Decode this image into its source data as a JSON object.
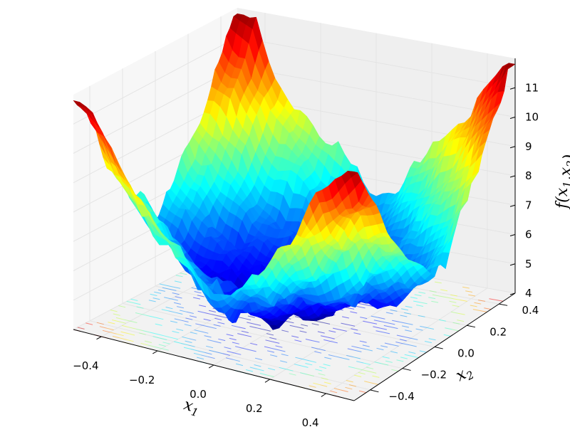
{
  "chart_data": {
    "type": "surface",
    "title": "",
    "xlabel": "x1",
    "ylabel": "x2",
    "zlabel": "f(x1,x2)",
    "xlim": [
      -0.5,
      0.5
    ],
    "ylim": [
      -0.5,
      0.5
    ],
    "zlim": [
      4,
      12
    ],
    "x_ticks": [
      -0.4,
      -0.2,
      0.0,
      0.2,
      0.4
    ],
    "x_tick_labels": [
      "−0.4",
      "−0.2",
      "0.0",
      "0.2",
      "0.4"
    ],
    "y_ticks": [
      -0.4,
      -0.2,
      0.0,
      0.2,
      0.4
    ],
    "y_tick_labels": [
      "−0.4",
      "−0.2",
      "0.0",
      "0.2",
      "0.4"
    ],
    "z_ticks": [
      4,
      5,
      6,
      7,
      8,
      9,
      10,
      11
    ],
    "z_tick_labels": [
      "4",
      "5",
      "6",
      "7",
      "8",
      "9",
      "10",
      "11"
    ],
    "colormap": "jet",
    "z_min_observed": 4.0,
    "z_max_observed": 11.8,
    "contour_projection": "floor",
    "grid": true,
    "legend": "none"
  }
}
